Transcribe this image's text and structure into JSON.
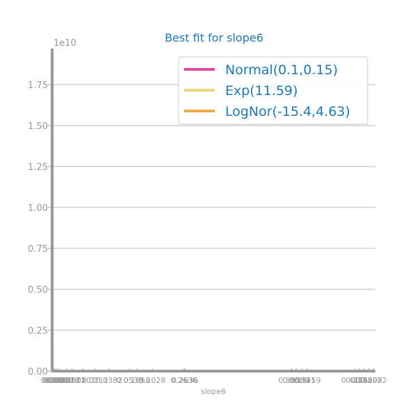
{
  "chart_data": {
    "type": "line",
    "title": "Best fit for slope6",
    "xlabel": "slope6",
    "ylabel": "",
    "y_multiplier": "1e10",
    "ylim": [
      0,
      1.97
    ],
    "yticks": [
      0.0,
      0.25,
      0.5,
      0.75,
      1.0,
      1.25,
      1.5,
      1.75
    ],
    "ytick_labels": [
      "0.00",
      "0.25",
      "0.50",
      "0.75",
      "1.00",
      "1.25",
      "1.50",
      "1.75"
    ],
    "xlim": [
      0,
      1
    ],
    "x_ticks": [
      {
        "x": 0.0,
        "label": "0.0"
      },
      {
        "x": 0.006,
        "label": "0.0001"
      },
      {
        "x": 0.011,
        "label": "0.0003"
      },
      {
        "x": 0.017,
        "label": "0.0010"
      },
      {
        "x": 0.024,
        "label": "0.0030"
      },
      {
        "x": 0.044,
        "label": "0.0070"
      },
      {
        "x": 0.062,
        "label": "0.0072"
      },
      {
        "x": 0.094,
        "label": "0.0102"
      },
      {
        "x": 0.133,
        "label": "0.0211"
      },
      {
        "x": 0.176,
        "label": "0.0382"
      },
      {
        "x": 0.24,
        "label": "0.0536"
      },
      {
        "x": 0.262,
        "label": "0.1656"
      },
      {
        "x": 0.31,
        "label": "0.2028"
      },
      {
        "x": 0.408,
        "label": "0.2636"
      },
      {
        "x": 0.411,
        "label": "0.2636"
      },
      {
        "x": 0.741,
        "label": "0.3053"
      },
      {
        "x": 0.755,
        "label": "0.3089"
      },
      {
        "x": 0.774,
        "label": "0.3121"
      },
      {
        "x": 0.79,
        "label": "0.3459"
      },
      {
        "x": 0.936,
        "label": "0.4226"
      },
      {
        "x": 0.95,
        "label": "0.4362"
      },
      {
        "x": 0.965,
        "label": "0.4580"
      },
      {
        "x": 0.98,
        "label": "0.4797"
      },
      {
        "x": 0.995,
        "label": "0.5082"
      }
    ],
    "series": [
      {
        "name": "Normal(0.1,0.15)",
        "color": "#e04a96",
        "x": [
          0.0,
          1.0
        ],
        "y": [
          0.0,
          0.0
        ]
      },
      {
        "name": "Exp(11.59)",
        "color": "#e8d87a",
        "x": [
          0.0,
          1.0
        ],
        "y": [
          0.0,
          0.0
        ]
      },
      {
        "name": "LogNor(-15.4,4.63)",
        "color": "#efaa48",
        "x": [
          0.0,
          0.001,
          0.002,
          1.0
        ],
        "y": [
          1.97,
          0.05,
          0.0,
          0.0
        ]
      }
    ],
    "grid": "y",
    "legend_placement": "top-right"
  }
}
